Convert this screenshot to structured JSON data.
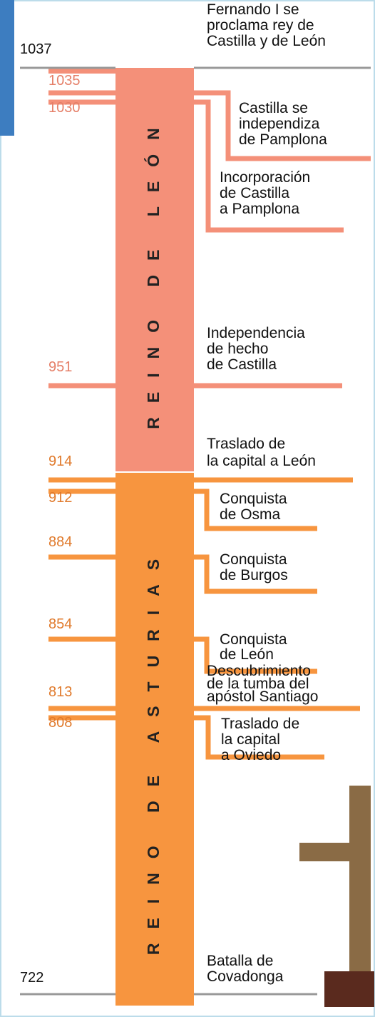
{
  "timeline": [
    {
      "year": "1037",
      "event": [
        "Fernando I se",
        "proclama rey de",
        "Castilla y de León"
      ]
    },
    {
      "year": "1035",
      "event": [
        "Castilla se",
        "independiza",
        "de Pamplona"
      ]
    },
    {
      "year": "1030",
      "event": [
        "Incorporación",
        "de Castilla",
        "a Pamplona"
      ]
    },
    {
      "year": "951",
      "event": [
        "Independencia",
        "de hecho",
        "de Castilla"
      ]
    },
    {
      "year": "914",
      "event": [
        "Traslado de",
        "la capital a León"
      ]
    },
    {
      "year": "912",
      "event": [
        "Conquista",
        "de Osma"
      ]
    },
    {
      "year": "884",
      "event": [
        "Conquista",
        "de Burgos"
      ]
    },
    {
      "year": "854",
      "event": [
        "Conquista",
        "de León"
      ]
    },
    {
      "year": "813",
      "event": [
        "Descubrimiento",
        "de la tumba del",
        "apóstol Santiago"
      ]
    },
    {
      "year": "808",
      "event": [
        "Traslado de",
        "la capital",
        "a Oviedo"
      ]
    },
    {
      "year": "722",
      "event": [
        "Batalla de",
        "Covadonga"
      ]
    }
  ],
  "kingdoms": [
    "REINO DE LEÓN",
    "REINO DE ASTURIAS"
  ]
}
